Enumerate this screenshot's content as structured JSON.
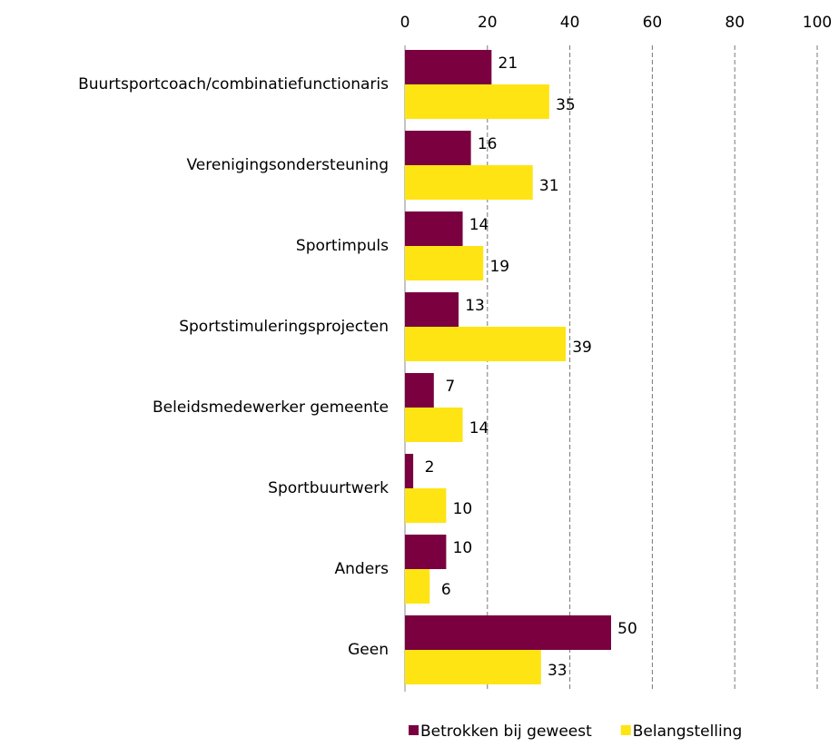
{
  "chart_data": {
    "type": "hbar",
    "categories": [
      "Buurtsportcoach/combinatiefunctionaris",
      "Verenigingsondersteuning",
      "Sportimpuls",
      "Sportstimuleringsprojecten",
      "Beleidsmedewerker gemeente",
      "Sportbuurtwerk",
      "Anders",
      "Geen"
    ],
    "series": [
      {
        "name": "Betrokken bij geweest",
        "color": "#7a0040",
        "values": [
          21,
          16,
          14,
          13,
          7,
          2,
          10,
          50
        ]
      },
      {
        "name": "Belangstelling",
        "color": "#ffe414",
        "values": [
          35,
          31,
          19,
          39,
          14,
          10,
          6,
          33
        ]
      }
    ],
    "xlim": [
      0,
      100
    ],
    "xticks": [
      0,
      20,
      40,
      60,
      80,
      100
    ],
    "grid": true,
    "legend": "bottom"
  }
}
